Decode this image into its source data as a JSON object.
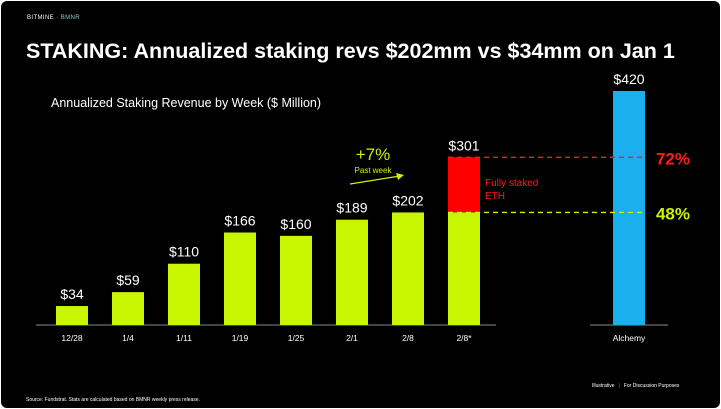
{
  "header": {
    "brand": "BITMINE",
    "brand_sep": "·",
    "ticker": "BMNR",
    "title": "STAKING: Annualized staking revs $202mm vs $34mm on Jan 1"
  },
  "chart_data": {
    "type": "bar",
    "title": "Annualized Staking Revenue by Week ($ Million)",
    "categories": [
      "12/28",
      "1/4",
      "1/11",
      "1/19",
      "1/25",
      "2/1",
      "2/8",
      "2/8*",
      "Alchemy"
    ],
    "values": [
      34,
      59,
      110,
      166,
      160,
      189,
      202,
      301,
      420
    ],
    "value_labels": [
      "$34",
      "$59",
      "$110",
      "$166",
      "$160",
      "$189",
      "$202",
      "$301",
      "$420"
    ],
    "stacked_projection": {
      "category": "2/8*",
      "base_value": 202,
      "increment_value": 99,
      "increment_label": "Fully staked ETH",
      "increment_label_lines": [
        "Fully staked",
        "ETH"
      ]
    },
    "reference_lines": [
      {
        "value": 301,
        "label": "72%",
        "color": "#ff1a1a"
      },
      {
        "value": 202,
        "label": "48%",
        "color": "#c8f500"
      }
    ],
    "annotation": {
      "change": "+7%",
      "period": "Past week"
    },
    "ylim": [
      0,
      420
    ],
    "colors": {
      "weekly": "#c8f500",
      "increment": "#ff0000",
      "alchemy": "#1ab0ee",
      "background": "#000000",
      "text": "#ffffff"
    }
  },
  "footer": {
    "source": "Source: Fundstrat. Stats are calculated based on BMNR weekly press release.",
    "illustrative": "Illustrative",
    "pipe": "|",
    "disclaimer": "For Discussion Purposes"
  }
}
